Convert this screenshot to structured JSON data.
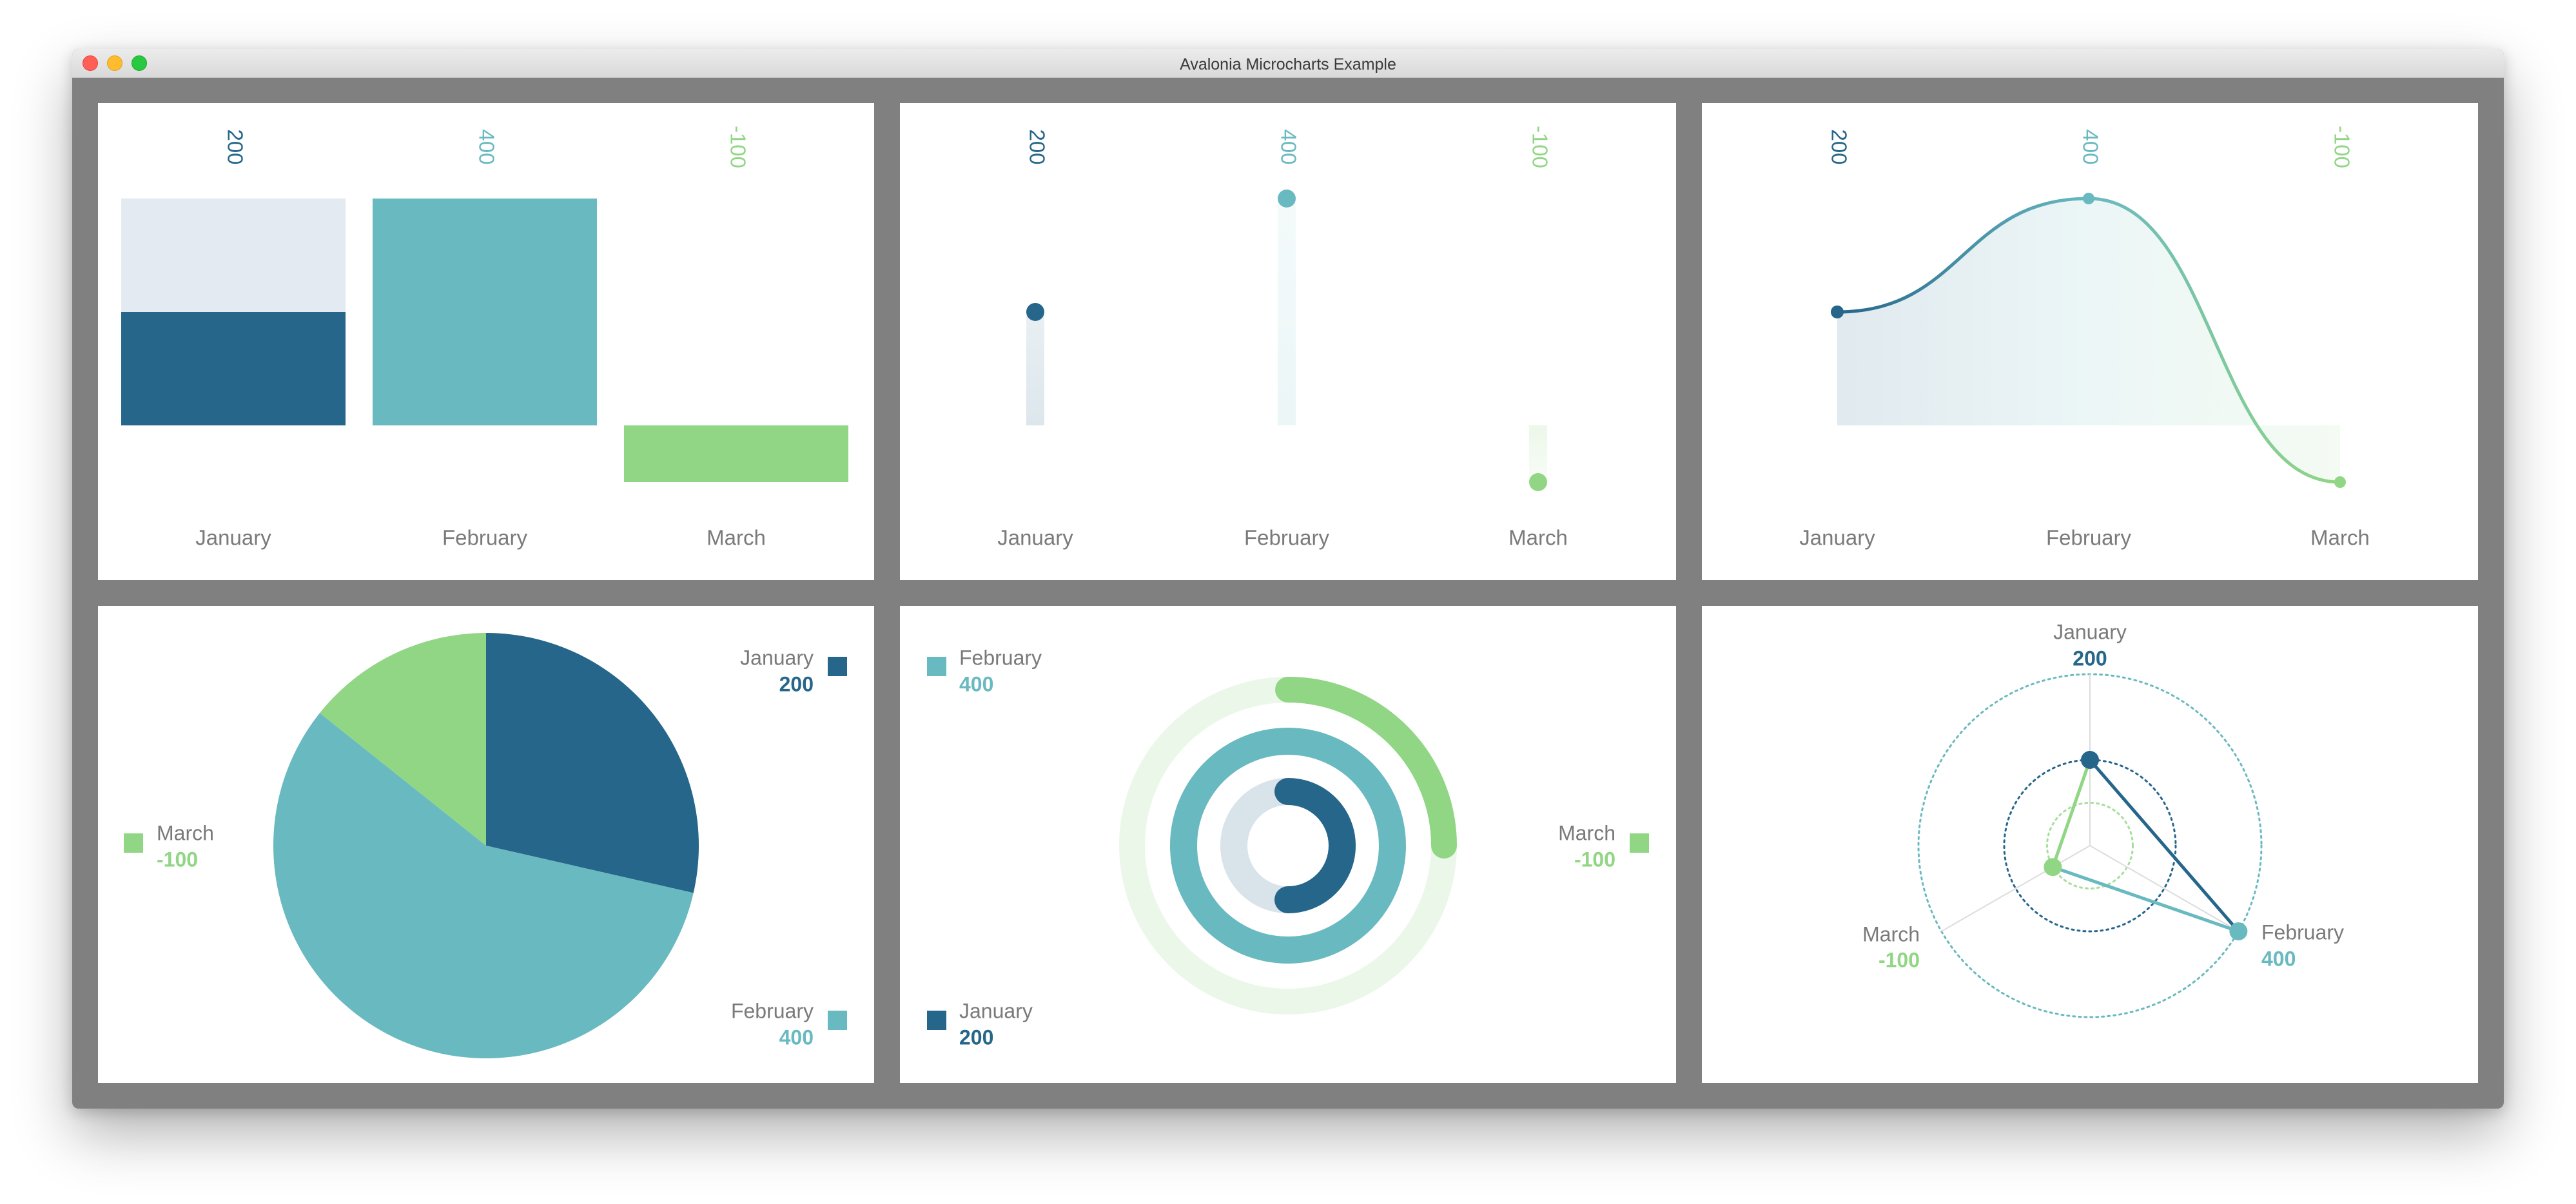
{
  "window": {
    "title": "Avalonia Microcharts Example"
  },
  "colors": {
    "january": "#25668a",
    "february": "#69b9c0",
    "march": "#91d684",
    "label": "#7a7a7a"
  },
  "entries": [
    {
      "label": "January",
      "value_label": "200"
    },
    {
      "label": "February",
      "value_label": "400"
    },
    {
      "label": "March",
      "value_label": "-100"
    }
  ],
  "chart_data": [
    {
      "type": "bar",
      "categories": [
        "January",
        "February",
        "March"
      ],
      "values": [
        200,
        400,
        -100
      ],
      "ylim": [
        -100,
        400
      ]
    },
    {
      "type": "point",
      "categories": [
        "January",
        "February",
        "March"
      ],
      "values": [
        200,
        400,
        -100
      ],
      "ylim": [
        -100,
        400
      ]
    },
    {
      "type": "line",
      "categories": [
        "January",
        "February",
        "March"
      ],
      "values": [
        200,
        400,
        -100
      ],
      "ylim": [
        -100,
        400
      ]
    },
    {
      "type": "pie",
      "categories": [
        "January",
        "February",
        "March"
      ],
      "values": [
        200,
        400,
        -100
      ]
    },
    {
      "type": "radialgauge",
      "categories": [
        "January",
        "February",
        "March"
      ],
      "values": [
        200,
        400,
        -100
      ]
    },
    {
      "type": "radar",
      "categories": [
        "January",
        "February",
        "March"
      ],
      "values": [
        200,
        400,
        -100
      ]
    }
  ]
}
